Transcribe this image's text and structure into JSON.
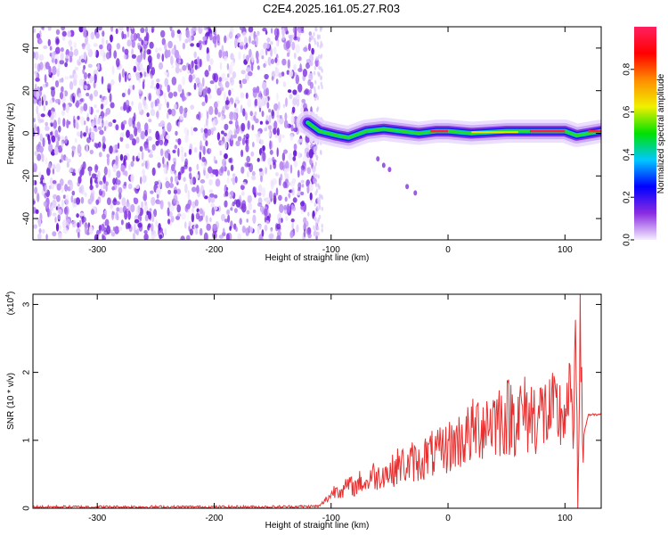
{
  "title": "C2E4.2025.161.05.27.R03",
  "chart_data": [
    {
      "type": "heatmap",
      "xlabel": "Height of straight line (km)",
      "ylabel": "Frequency (Hz)",
      "xlim": [
        -355,
        131
      ],
      "ylim": [
        -50,
        50
      ],
      "xticks": [
        -300,
        -200,
        -100,
        0,
        100
      ],
      "yticks": [
        -40,
        -20,
        0,
        20,
        40
      ],
      "grid": false,
      "noise_region_x": [
        -355,
        -112
      ],
      "signal_band": [
        {
          "x": -120,
          "y": 5
        },
        {
          "x": -110,
          "y": 1
        },
        {
          "x": -95,
          "y": -1
        },
        {
          "x": -85,
          "y": -2
        },
        {
          "x": -70,
          "y": 1
        },
        {
          "x": -55,
          "y": 2
        },
        {
          "x": -40,
          "y": 1
        },
        {
          "x": -25,
          "y": 0
        },
        {
          "x": -10,
          "y": 1
        },
        {
          "x": 0,
          "y": 1
        },
        {
          "x": 20,
          "y": 0
        },
        {
          "x": 50,
          "y": 1
        },
        {
          "x": 80,
          "y": 1
        },
        {
          "x": 100,
          "y": 1
        },
        {
          "x": 110,
          "y": -1
        },
        {
          "x": 131,
          "y": 1
        }
      ],
      "tail_points": [
        {
          "x": -60,
          "y": -12
        },
        {
          "x": -55,
          "y": -15
        },
        {
          "x": -50,
          "y": -17
        },
        {
          "x": -35,
          "y": -25
        },
        {
          "x": -28,
          "y": -28
        }
      ]
    },
    {
      "type": "colorbar",
      "label": "Normalized spectral amplitude",
      "range": [
        0.0,
        1.0
      ],
      "ticks": [
        "0.0",
        "0.2",
        "0.4",
        "0.6",
        "0.8"
      ],
      "tick_values": [
        0.0,
        0.2,
        0.4,
        0.6,
        0.8
      ],
      "colors": [
        "#f4eefe",
        "#8a2be2",
        "#0000ff",
        "#00c8ff",
        "#00e000",
        "#f0f000",
        "#ff8c00",
        "#ff0000",
        "#ff2060"
      ]
    },
    {
      "type": "line",
      "xlabel": "Height of straight line (km)",
      "ylabel": "SNR (10 * v/v)",
      "multiplier": "(x10",
      "multiplier_exp": "4",
      "multiplier_close": ")",
      "xlim": [
        -355,
        131
      ],
      "ylim": [
        0,
        3.15
      ],
      "xticks": [
        -300,
        -200,
        -100,
        0,
        100
      ],
      "yticks": [
        0,
        1,
        2,
        3
      ],
      "grid": false,
      "color": "#e83030",
      "series": [
        {
          "x": [
            -355,
            -300,
            -250,
            -200,
            -150,
            -110,
            -100,
            -95,
            -90,
            -85,
            -80,
            -75,
            -70,
            -65,
            -60,
            -55,
            -50,
            -45,
            -40,
            -35,
            -30,
            -25,
            -20,
            -15,
            -10,
            -5,
            0,
            5,
            10,
            15,
            20,
            25,
            30,
            35,
            40,
            50,
            60,
            70,
            80,
            90,
            95,
            100,
            103,
            105,
            107,
            109,
            111,
            113,
            115,
            120,
            125,
            131
          ],
          "y": [
            0.02,
            0.02,
            0.02,
            0.02,
            0.02,
            0.03,
            0.2,
            0.3,
            0.25,
            0.35,
            0.3,
            0.4,
            0.35,
            0.5,
            0.45,
            0.55,
            0.5,
            0.6,
            0.65,
            0.6,
            0.7,
            0.65,
            0.75,
            0.8,
            0.78,
            0.85,
            0.9,
            0.95,
            1.0,
            1.05,
            1.1,
            1.2,
            1.25,
            1.3,
            1.32,
            1.35,
            1.38,
            1.37,
            1.39,
            1.38,
            1.38,
            1.4,
            1.3,
            2.1,
            0.3,
            3.1,
            0.5,
            2.6,
            1.0,
            1.38,
            1.37,
            1.38
          ]
        }
      ]
    }
  ]
}
